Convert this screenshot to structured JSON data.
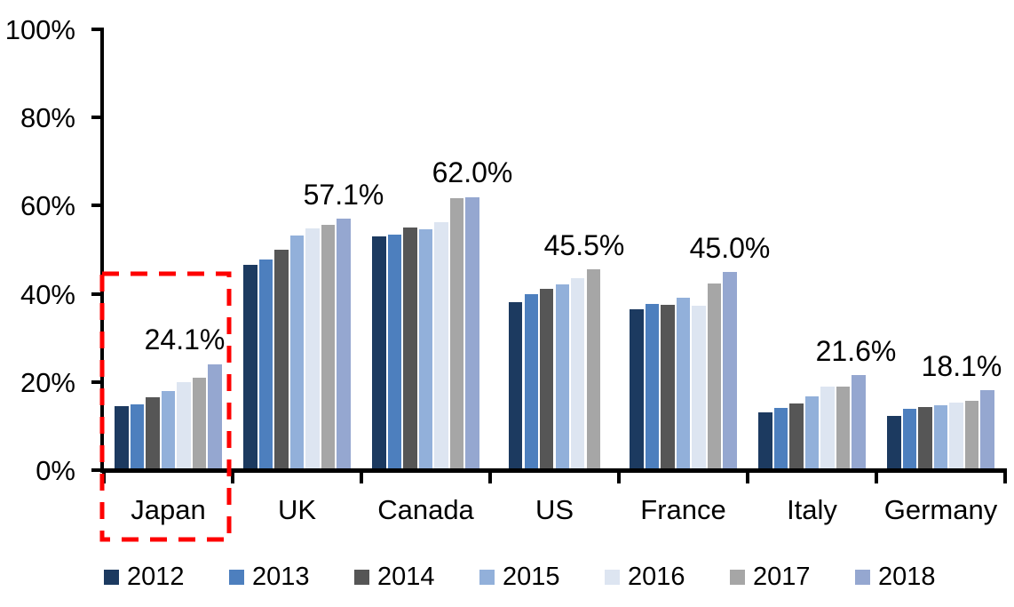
{
  "chart_data": {
    "type": "bar",
    "title": "",
    "xlabel": "",
    "ylabel": "",
    "ylim": [
      0,
      100
    ],
    "grid": false,
    "legend_position": "bottom",
    "y_ticks": [
      "0%",
      "20%",
      "40%",
      "60%",
      "80%",
      "100%"
    ],
    "y_tick_values": [
      0,
      20,
      40,
      60,
      80,
      100
    ],
    "categories": [
      "Japan",
      "UK",
      "Canada",
      "US",
      "France",
      "Italy",
      "Germany"
    ],
    "series": [
      {
        "name": "2012",
        "color": "#1c3a60",
        "values": [
          14.6,
          46.5,
          53.0,
          38.2,
          36.5,
          13.2,
          12.4
        ]
      },
      {
        "name": "2013",
        "color": "#4d7fbe",
        "values": [
          14.9,
          47.8,
          53.4,
          40.0,
          37.7,
          14.1,
          14.0
        ]
      },
      {
        "name": "2014",
        "color": "#565656",
        "values": [
          16.5,
          50.0,
          55.0,
          41.1,
          37.5,
          15.2,
          14.3
        ]
      },
      {
        "name": "2015",
        "color": "#92b0da",
        "values": [
          18.0,
          53.2,
          54.6,
          42.1,
          39.2,
          16.7,
          14.7
        ]
      },
      {
        "name": "2016",
        "color": "#dde5f1",
        "values": [
          20.0,
          54.9,
          56.2,
          43.5,
          37.3,
          18.9,
          15.3
        ]
      },
      {
        "name": "2017",
        "color": "#a6a6a6",
        "values": [
          21.0,
          55.7,
          61.7,
          45.5,
          42.3,
          19.0,
          15.8
        ]
      },
      {
        "name": "2018",
        "color": "#95a7d0",
        "values": [
          24.1,
          57.1,
          62.0,
          null,
          45.0,
          21.6,
          18.1
        ]
      }
    ],
    "value_labels": [
      "24.1%",
      "57.1%",
      "62.0%",
      "45.5%",
      "45.0%",
      "21.6%",
      "18.1%"
    ],
    "annotations": {
      "highlight_category": "Japan",
      "highlight_style": "red-dashed-box",
      "highlight_color": "#fe0000"
    },
    "axis_color": "#000000",
    "background_color": "#ffffff"
  }
}
